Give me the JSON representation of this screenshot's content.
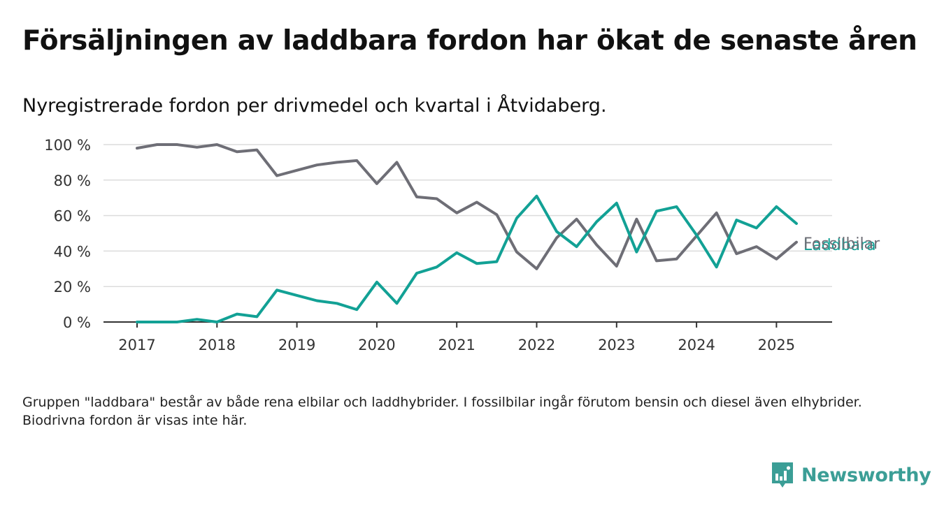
{
  "title": "Försäljningen av laddbara fordon har ökat de senaste åren",
  "subtitle": "Nyregistrerade fordon per drivmedel och kvartal i Åtvidaberg.",
  "note": "Gruppen \"laddbara\" består av både rena elbilar och laddhybrider. I fossilbilar ingår förutom bensin och diesel även elhybrider. Biodrivna fordon är visas inte här.",
  "brand": {
    "name": "Newsworthy",
    "icon": "bar-chart-logo-icon",
    "color": "#3b9e96"
  },
  "chart_data": {
    "type": "line",
    "title": "Försäljningen av laddbara fordon har ökat de senaste åren",
    "subtitle": "Nyregistrerade fordon per drivmedel och kvartal i Åtvidaberg.",
    "xlabel": "",
    "ylabel": "",
    "x_ticks": [
      "2017",
      "2018",
      "2019",
      "2020",
      "2021",
      "2022",
      "2023",
      "2024",
      "2025"
    ],
    "y_ticks": [
      "0 %",
      "20 %",
      "40 %",
      "60 %",
      "80 %",
      "100 %"
    ],
    "ylim": [
      0,
      100
    ],
    "grid": true,
    "x": [
      "2017Q1",
      "2017Q2",
      "2017Q3",
      "2017Q4",
      "2018Q1",
      "2018Q2",
      "2018Q3",
      "2018Q4",
      "2019Q1",
      "2019Q2",
      "2019Q3",
      "2019Q4",
      "2020Q1",
      "2020Q2",
      "2020Q3",
      "2020Q4",
      "2021Q1",
      "2021Q2",
      "2021Q3",
      "2021Q4",
      "2022Q1",
      "2022Q2",
      "2022Q3",
      "2022Q4",
      "2023Q1",
      "2023Q2",
      "2023Q3",
      "2023Q4",
      "2024Q1",
      "2024Q2",
      "2024Q3",
      "2024Q4",
      "2025Q1",
      "2025Q2"
    ],
    "series": [
      {
        "name": "Fossilbilar",
        "color": "#6e6e76",
        "values": [
          98,
          100,
          100,
          98.5,
          100,
          96,
          97,
          82.5,
          85.5,
          88.5,
          90,
          91,
          78,
          90,
          70.5,
          69.5,
          61.5,
          67.5,
          60.5,
          39.5,
          30,
          47.5,
          58,
          43.5,
          31.5,
          58,
          34.5,
          35.5,
          48.5,
          61.5,
          38.5,
          42.5,
          35.5,
          45
        ]
      },
      {
        "name": "Laddbara",
        "color": "#12a195",
        "values": [
          0,
          0,
          0,
          1.5,
          0,
          4.5,
          3,
          18,
          15,
          12,
          10.5,
          7,
          22.5,
          10.5,
          27.5,
          31,
          39,
          33,
          34,
          58.5,
          71,
          51,
          42.5,
          56.5,
          67,
          39.5,
          62.5,
          65,
          49,
          31,
          57.5,
          53,
          65,
          55.5
        ]
      }
    ]
  }
}
